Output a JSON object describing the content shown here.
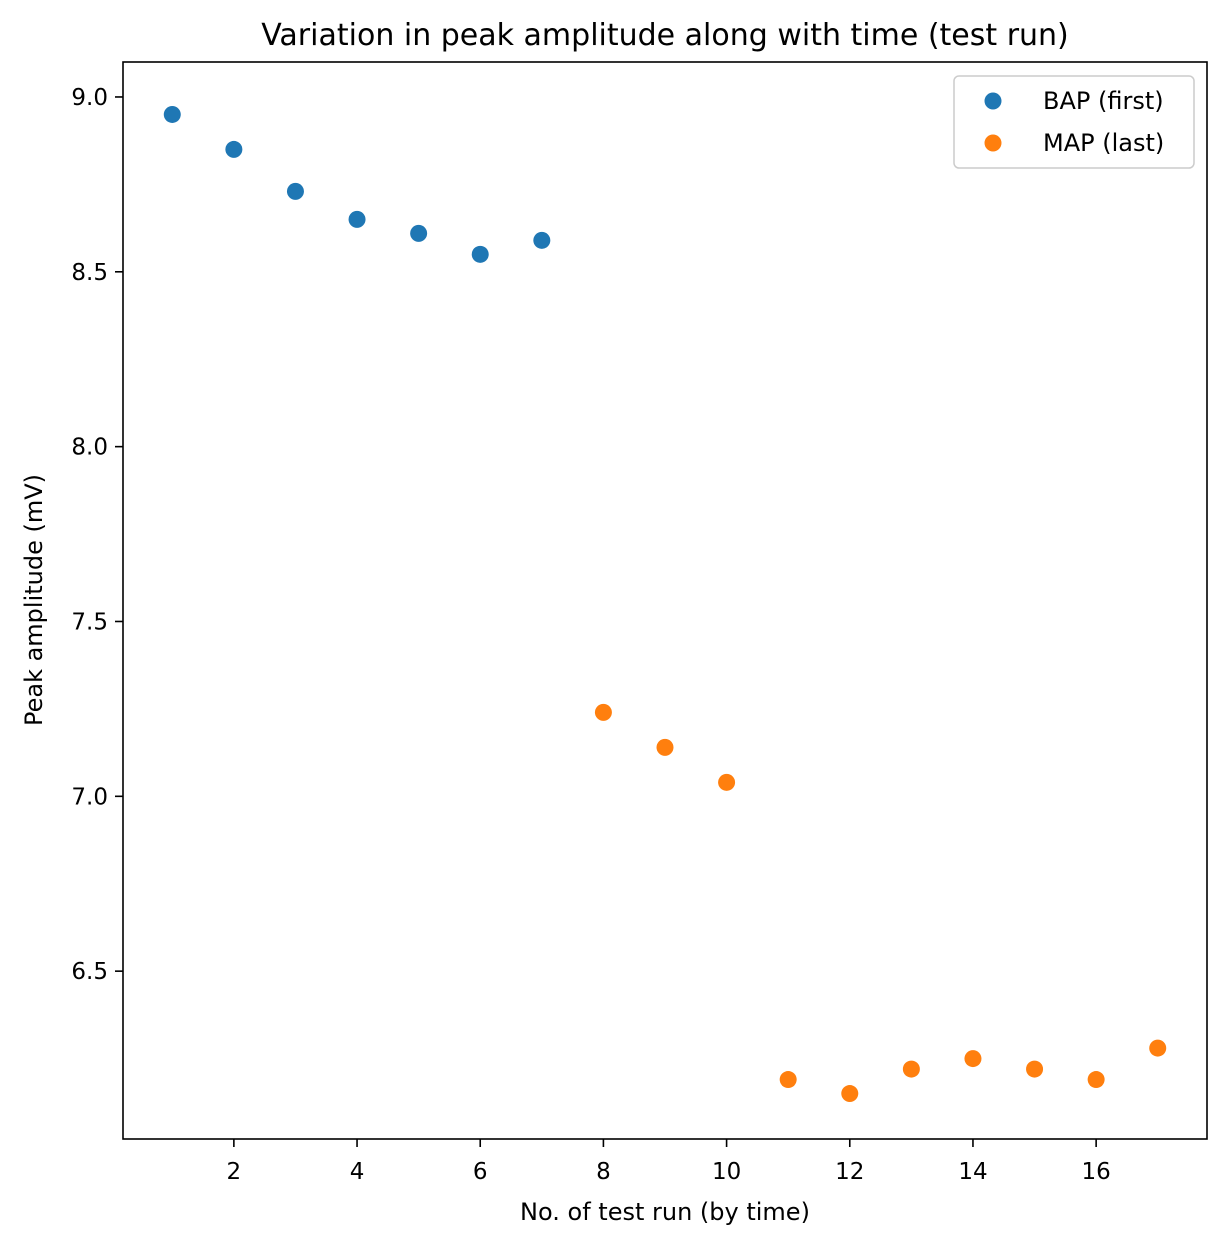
{
  "chart_data": {
    "type": "scatter",
    "title": "Variation in peak amplitude along with time (test run)",
    "xlabel": "No. of test run (by time)",
    "ylabel": "Peak amplitude (mV)",
    "xlim": [
      0.2,
      17.8
    ],
    "ylim": [
      6.02,
      9.1
    ],
    "xticks": [
      2,
      4,
      6,
      8,
      10,
      12,
      14,
      16
    ],
    "yticks": [
      6.5,
      7.0,
      7.5,
      8.0,
      8.5,
      9.0
    ],
    "xtick_labels": [
      "2",
      "4",
      "6",
      "8",
      "10",
      "12",
      "14",
      "16"
    ],
    "ytick_labels": [
      "6.5",
      "7.0",
      "7.5",
      "8.0",
      "8.5",
      "9.0"
    ],
    "grid": false,
    "legend_position": "top-right",
    "series": [
      {
        "name": "BAP (first)",
        "color": "#1f77b4",
        "x": [
          1,
          2,
          3,
          4,
          5,
          6,
          7
        ],
        "y": [
          8.95,
          8.85,
          8.73,
          8.65,
          8.61,
          8.55,
          8.59
        ]
      },
      {
        "name": "MAP (last)",
        "color": "#ff7f0e",
        "x": [
          8,
          9,
          10,
          11,
          12,
          13,
          14,
          15,
          16,
          17
        ],
        "y": [
          7.24,
          7.14,
          7.04,
          6.19,
          6.15,
          6.22,
          6.25,
          6.22,
          6.19,
          6.28
        ]
      }
    ]
  }
}
